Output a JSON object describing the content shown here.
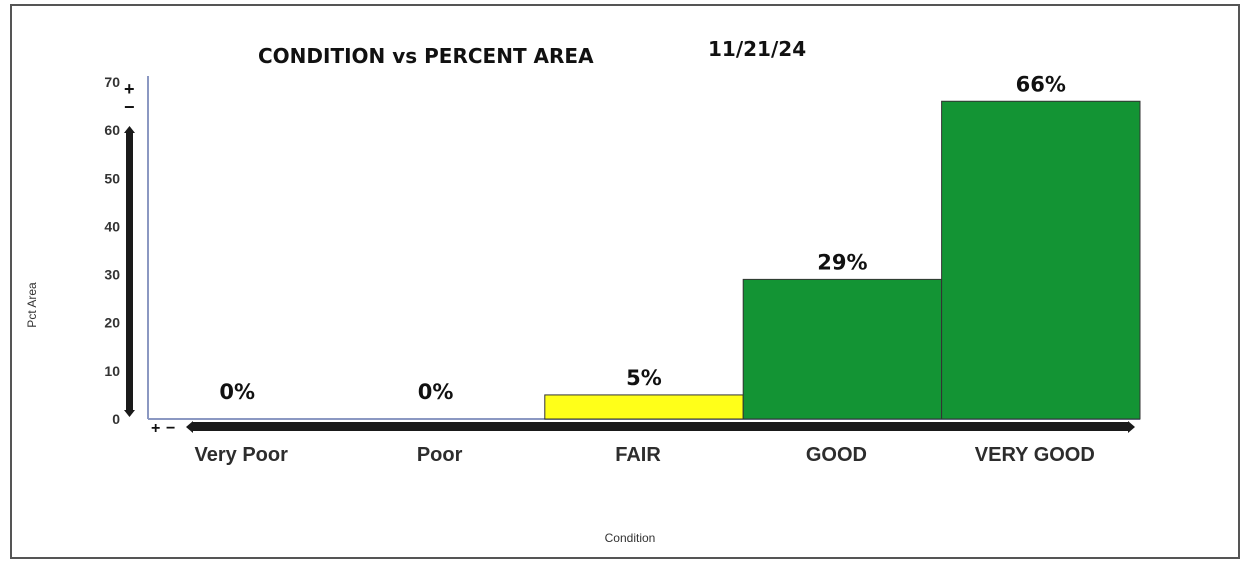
{
  "chart_data": {
    "type": "bar",
    "title": "CONDITION vs PERCENT AREA",
    "date": "11/21/24",
    "xlabel": "Condition",
    "ylabel": "Pct Area",
    "categories": [
      "Very Poor",
      "Poor",
      "FAIR",
      "GOOD",
      "VERY GOOD"
    ],
    "values": [
      0,
      0,
      5,
      29,
      66
    ],
    "data_labels": [
      "0%",
      "0%",
      "5%",
      "29%",
      "66%"
    ],
    "bar_colors": [
      "#ffffff",
      "#ffffff",
      "#ffff19",
      "#139434",
      "#139434"
    ],
    "ylim": [
      0,
      70
    ],
    "yticks": [
      0,
      10,
      20,
      30,
      40,
      50,
      60,
      70
    ],
    "grid": false,
    "legend": "none"
  },
  "colors": {
    "axis": "#8b98c2",
    "scroll_bar": "#1a1a1a",
    "bar_edge": "#333333"
  }
}
